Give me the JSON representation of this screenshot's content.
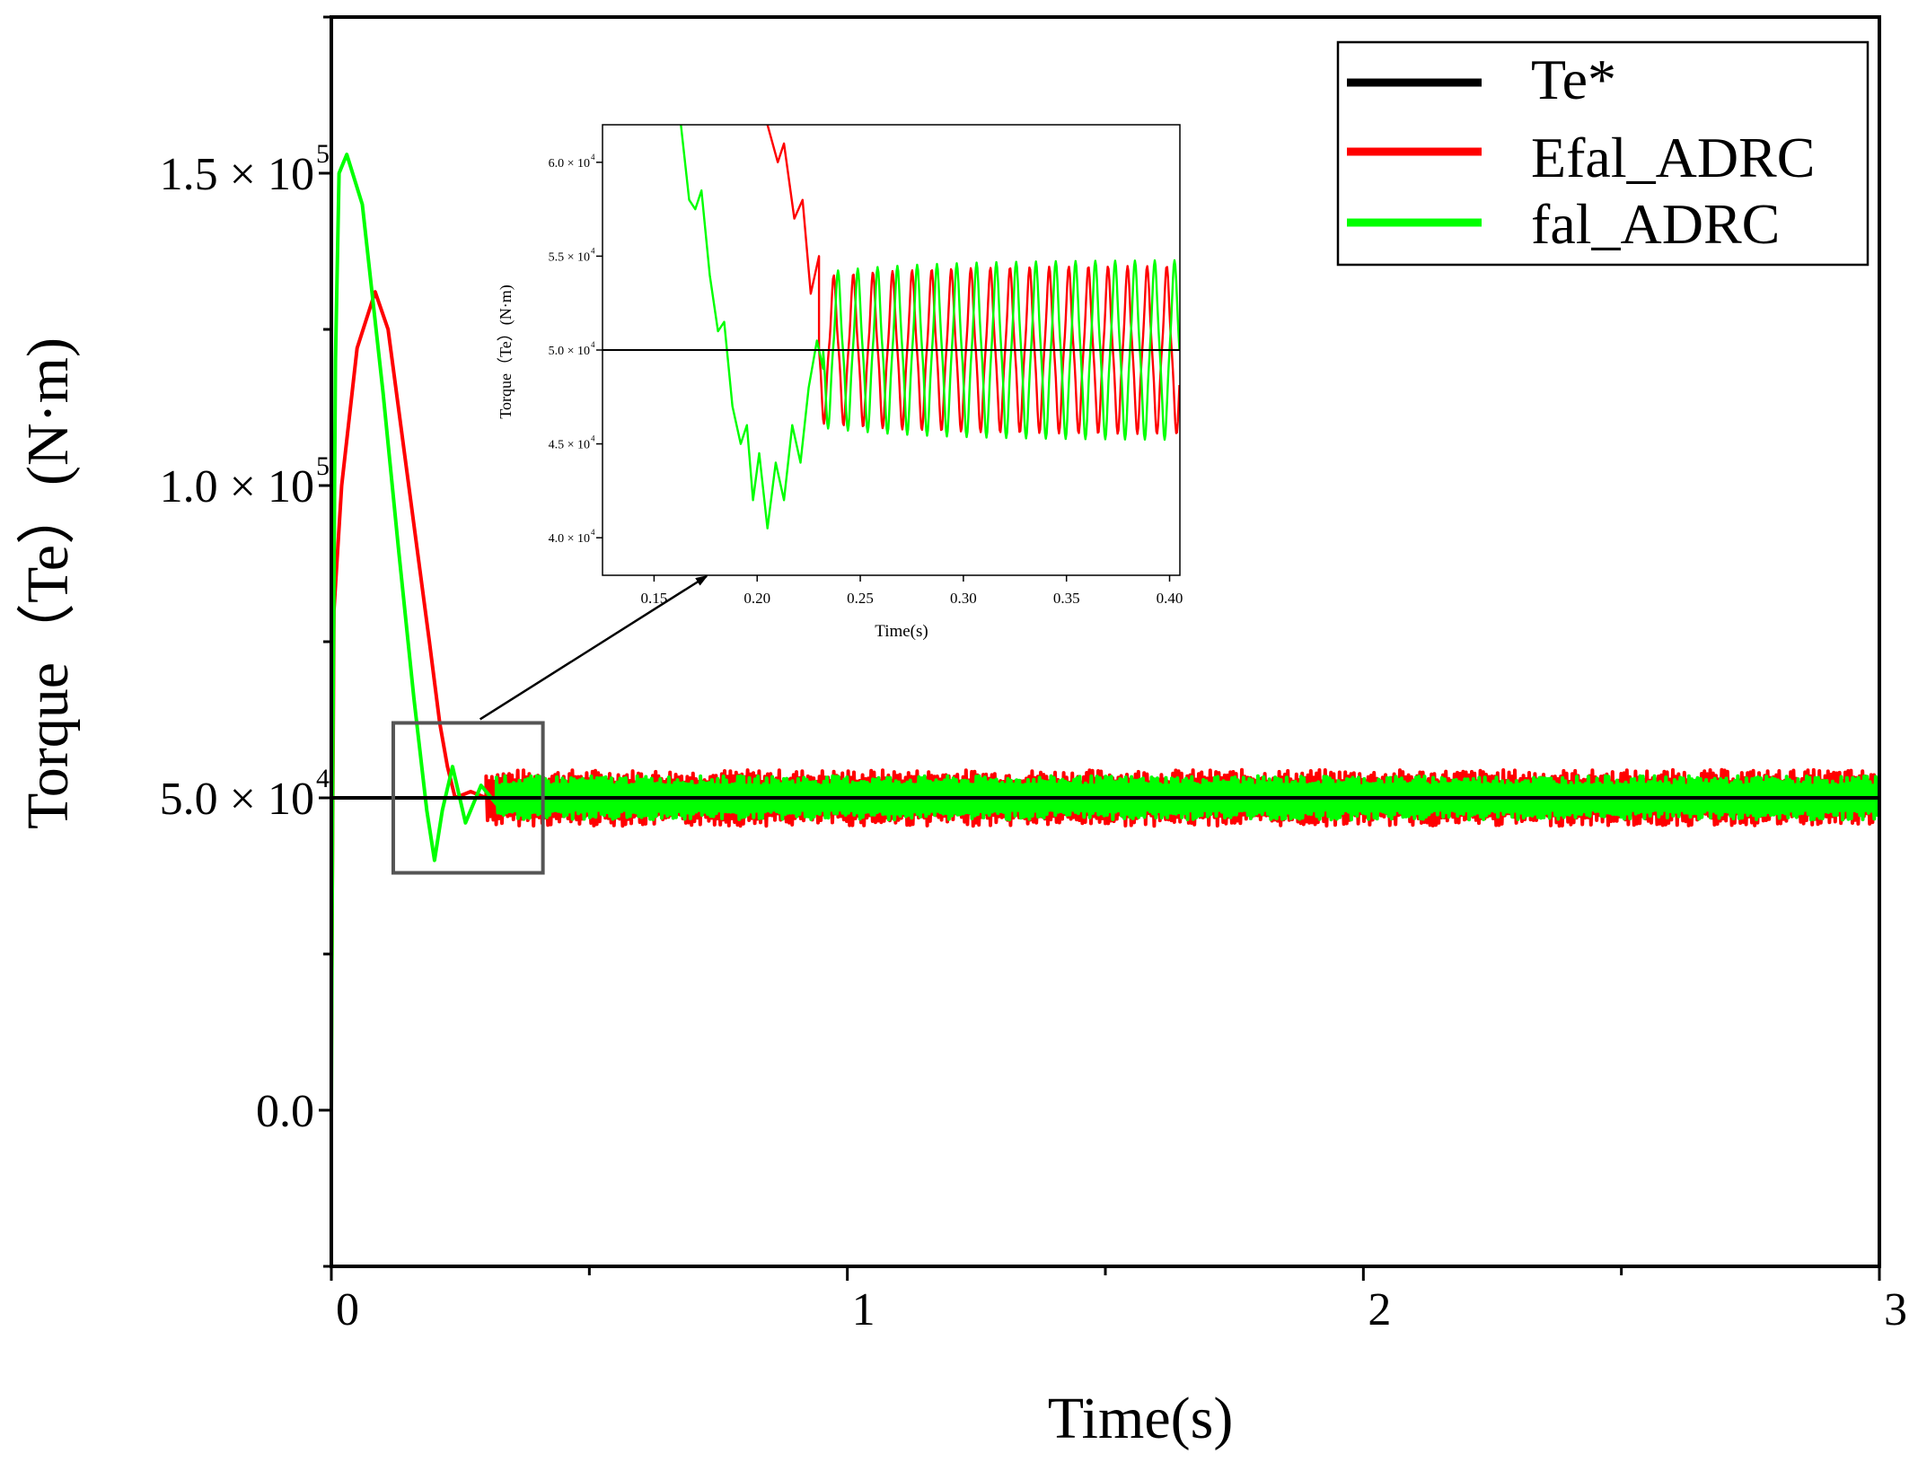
{
  "chart_data": {
    "type": "line",
    "xlabel": "Time(s)",
    "ylabel": "Torque（Te）(N·m)",
    "xlim": [
      0,
      3
    ],
    "ylim": [
      -25000,
      175000
    ],
    "x_ticks": [
      {
        "value": 0,
        "label": "0"
      },
      {
        "value": 1,
        "label": "1"
      },
      {
        "value": 2,
        "label": "2"
      },
      {
        "value": 3,
        "label": "3"
      }
    ],
    "y_ticks": [
      {
        "value": 0,
        "mantissa": "0.0",
        "exp": ""
      },
      {
        "value": 50000,
        "mantissa": "5.0 × 10",
        "exp": "4"
      },
      {
        "value": 100000,
        "mantissa": "1.0 × 10",
        "exp": "5"
      },
      {
        "value": 150000,
        "mantissa": "1.5 × 10",
        "exp": "5"
      }
    ],
    "legend": {
      "position": "top-right",
      "entries": [
        {
          "name": "Te*",
          "color": "#000000"
        },
        {
          "name": "Efal_ADRC",
          "color": "#ff0000"
        },
        {
          "name": "fal_ADRC",
          "color": "#00ff00"
        }
      ]
    },
    "series": [
      {
        "name": "Te*",
        "color": "#000000",
        "points": [
          [
            0,
            50000
          ],
          [
            3,
            50000
          ]
        ]
      },
      {
        "name": "Efal_ADRC",
        "color": "#ff0000",
        "points": [
          [
            0,
            10000
          ],
          [
            0.005,
            80000
          ],
          [
            0.02,
            100000
          ],
          [
            0.05,
            122000
          ],
          [
            0.085,
            131000
          ],
          [
            0.11,
            125000
          ],
          [
            0.15,
            100000
          ],
          [
            0.19,
            75000
          ],
          [
            0.21,
            62000
          ],
          [
            0.225,
            55000
          ],
          [
            0.24,
            50000
          ],
          [
            0.27,
            51000
          ],
          [
            0.3,
            50000
          ]
        ],
        "steady_state": {
          "center": 50000,
          "amplitude": 4500,
          "from": 0.3,
          "to": 3
        }
      },
      {
        "name": "fal_ADRC",
        "color": "#00ff00",
        "points": [
          [
            0,
            0
          ],
          [
            0.003,
            60000
          ],
          [
            0.008,
            120000
          ],
          [
            0.015,
            150000
          ],
          [
            0.03,
            153000
          ],
          [
            0.06,
            145000
          ],
          [
            0.1,
            115000
          ],
          [
            0.13,
            90000
          ],
          [
            0.16,
            66000
          ],
          [
            0.185,
            48000
          ],
          [
            0.2,
            40000
          ],
          [
            0.215,
            48000
          ],
          [
            0.235,
            55000
          ],
          [
            0.26,
            46000
          ],
          [
            0.29,
            52000
          ],
          [
            0.32,
            49000
          ]
        ],
        "steady_state": {
          "center": 50000,
          "amplitude": 3500,
          "from": 0.32,
          "to": 3
        }
      }
    ],
    "zoom_box": {
      "x_range": [
        0.12,
        0.41
      ],
      "y_range": [
        38000,
        62000
      ]
    },
    "inset": {
      "xlabel": "Time(s)",
      "ylabel": "Torque（Te）(N·m)",
      "xlim": [
        0.125,
        0.405
      ],
      "ylim": [
        38000,
        62000
      ],
      "x_ticks": [
        {
          "value": 0.15,
          "label": "0.15"
        },
        {
          "value": 0.2,
          "label": "0.20"
        },
        {
          "value": 0.25,
          "label": "0.25"
        },
        {
          "value": 0.3,
          "label": "0.30"
        },
        {
          "value": 0.35,
          "label": "0.35"
        },
        {
          "value": 0.4,
          "label": "0.40"
        }
      ],
      "y_ticks": [
        {
          "value": 40000,
          "mantissa": "4.0 × 10",
          "exp": "4"
        },
        {
          "value": 45000,
          "mantissa": "4.5 × 10",
          "exp": "4"
        },
        {
          "value": 50000,
          "mantissa": "5.0 × 10",
          "exp": "4"
        },
        {
          "value": 55000,
          "mantissa": "5.5 × 10",
          "exp": "4"
        },
        {
          "value": 60000,
          "mantissa": "6.0 × 10",
          "exp": "4"
        }
      ],
      "series": [
        {
          "name": "Efal_ADRC",
          "color": "#ff0000",
          "points": [
            [
              0.205,
              62000
            ],
            [
              0.21,
              60000
            ],
            [
              0.213,
              61000
            ],
            [
              0.218,
              57000
            ],
            [
              0.222,
              58000
            ],
            [
              0.226,
              53000
            ],
            [
              0.23,
              55000
            ]
          ],
          "oscillation": {
            "from": 0.23,
            "to": 0.405,
            "center": 50000,
            "amplitude": 4000,
            "period": 0.0095
          }
        },
        {
          "name": "fal_ADRC",
          "color": "#00ff00",
          "points": [
            [
              0.163,
              62000
            ],
            [
              0.167,
              58000
            ],
            [
              0.17,
              57500
            ],
            [
              0.173,
              58500
            ],
            [
              0.177,
              54000
            ],
            [
              0.181,
              51000
            ],
            [
              0.184,
              51500
            ],
            [
              0.188,
              47000
            ],
            [
              0.192,
              45000
            ],
            [
              0.195,
              46000
            ],
            [
              0.198,
              42000
            ],
            [
              0.201,
              44500
            ],
            [
              0.205,
              40500
            ],
            [
              0.209,
              44000
            ],
            [
              0.213,
              42000
            ],
            [
              0.217,
              46000
            ],
            [
              0.221,
              44000
            ],
            [
              0.225,
              48000
            ],
            [
              0.229,
              50500
            ],
            [
              0.232,
              49000
            ]
          ],
          "oscillation": {
            "from": 0.232,
            "to": 0.405,
            "center": 50000,
            "amplitude": 4300,
            "period": 0.0096
          }
        },
        {
          "name": "Te*",
          "color": "#000000",
          "points": [
            [
              0.125,
              50000
            ],
            [
              0.405,
              50000
            ]
          ]
        }
      ]
    }
  }
}
